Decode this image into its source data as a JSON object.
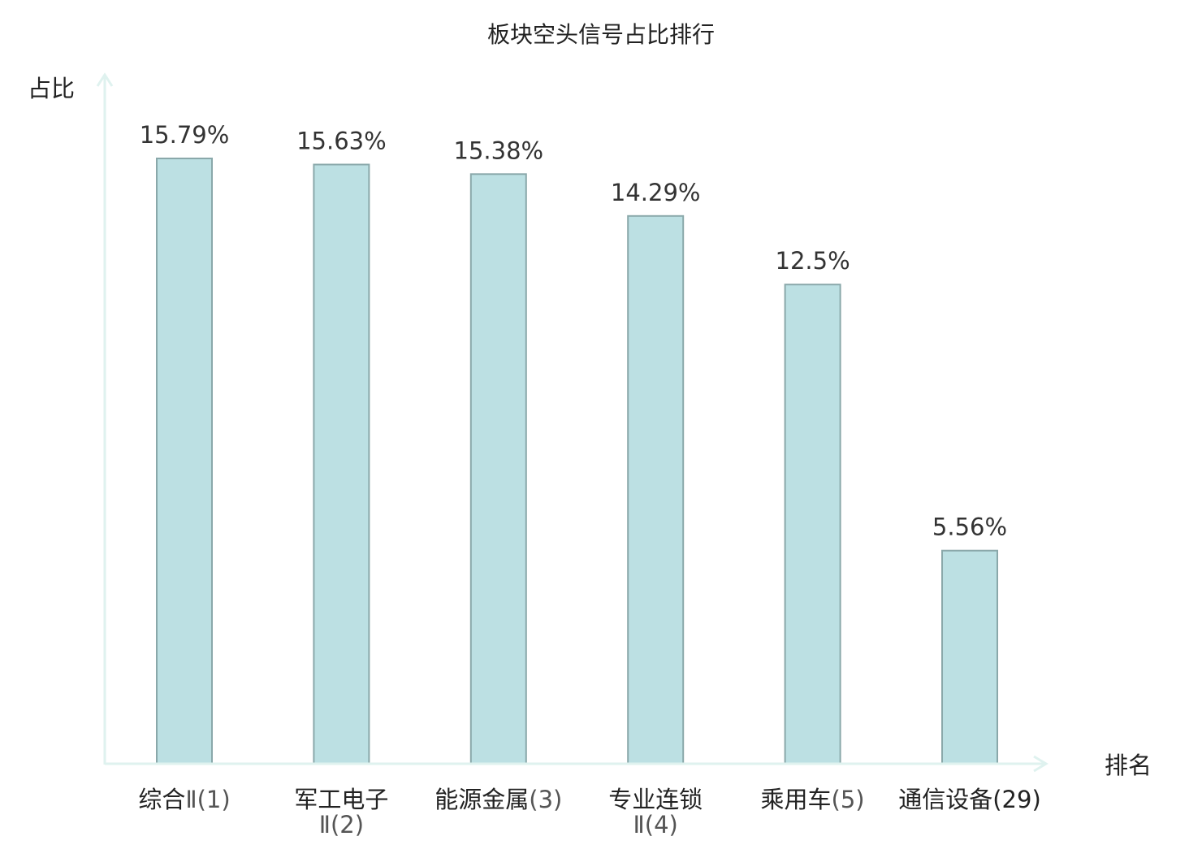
{
  "chart_data": {
    "type": "bar",
    "title": "板块空头信号占比排行",
    "xlabel": "排名",
    "ylabel": "占比",
    "ylim": [
      0,
      16.5
    ],
    "grid": false,
    "categories": [
      {
        "name": "综合",
        "suffix": "Ⅱ(1)",
        "line2": "",
        "highlight": false
      },
      {
        "name": "军工电子",
        "suffix": "",
        "line2": "Ⅱ(2)",
        "highlight": false
      },
      {
        "name": "能源金属",
        "suffix": "(3)",
        "line2": "",
        "highlight": false
      },
      {
        "name": "专业连锁",
        "suffix": "",
        "line2": "Ⅱ(4)",
        "highlight": false
      },
      {
        "name": "乘用车",
        "suffix": "(5)",
        "line2": "",
        "highlight": false
      },
      {
        "name": "通信设备",
        "suffix": "(29)",
        "line2": "",
        "highlight": true
      }
    ],
    "values": [
      15.79,
      15.63,
      15.38,
      14.29,
      12.5,
      5.56
    ],
    "value_labels": [
      "15.79%",
      "15.63%",
      "15.38%",
      "14.29%",
      "12.5%",
      "5.56%"
    ]
  },
  "colors": {
    "bar_fill": "#bce0e3",
    "bar_stroke": "#8aa8aa",
    "axis": "#dff2ef",
    "highlight": "#dd1c1c"
  }
}
